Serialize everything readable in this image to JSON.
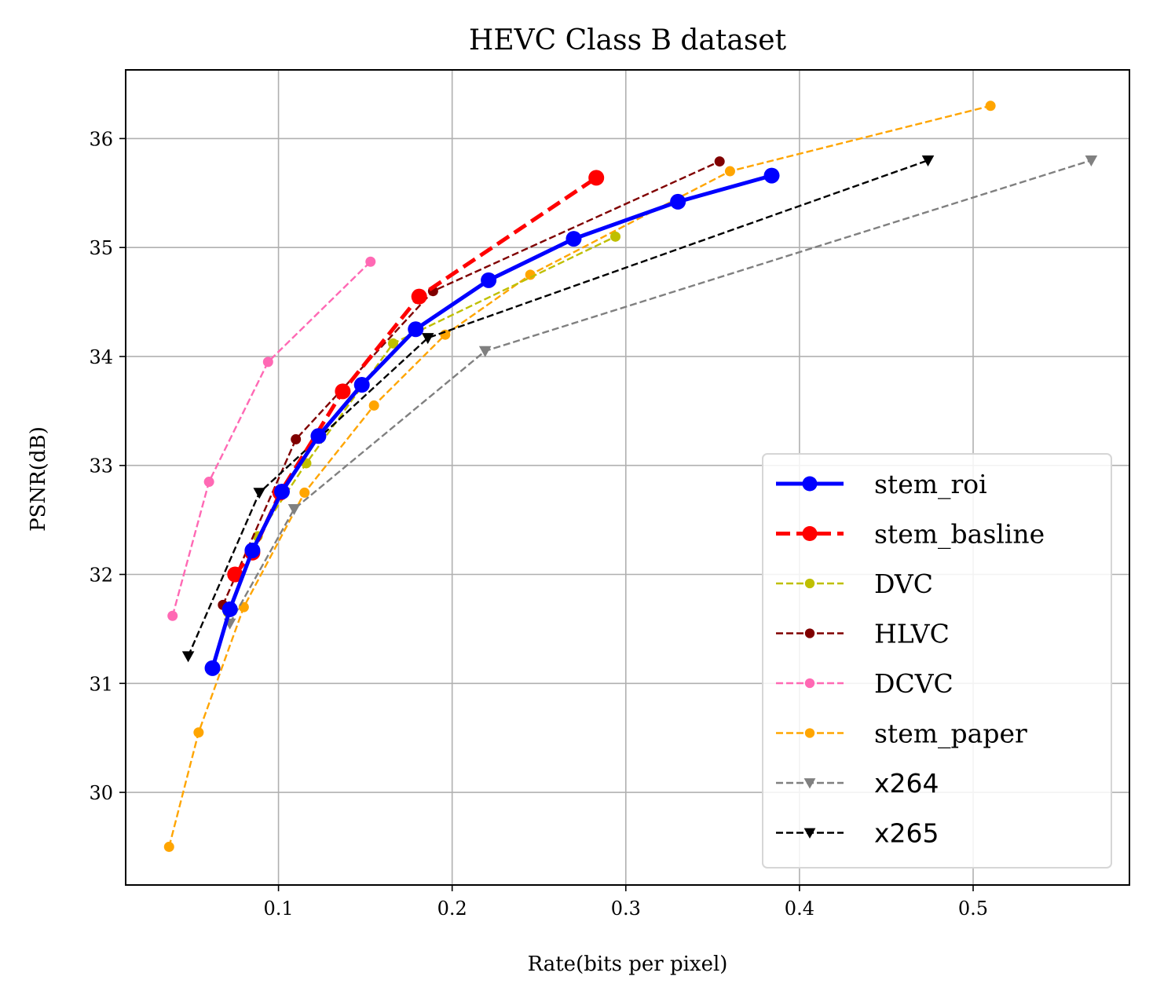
{
  "chart_data": {
    "type": "line",
    "title": "HEVC Class B dataset",
    "xlabel": "Rate(bits per pixel)",
    "ylabel": "PSNR(dB)",
    "xlim": [
      0.012,
      0.59
    ],
    "ylim": [
      29.15,
      36.63
    ],
    "xticks": [
      0.1,
      0.2,
      0.3,
      0.4,
      0.5
    ],
    "xtick_labels": [
      "0.1",
      "0.2",
      "0.3",
      "0.4",
      "0.5"
    ],
    "yticks": [
      30,
      31,
      32,
      33,
      34,
      35,
      36
    ],
    "ytick_labels": [
      "30",
      "31",
      "32",
      "33",
      "34",
      "35",
      "36"
    ],
    "grid": true,
    "legend_position": "lower-right",
    "series": [
      {
        "name": "DCVC",
        "color": "#ff69b4",
        "style": "dashed",
        "marker": "circle",
        "legend_font": "serif",
        "x": [
          0.039,
          0.06,
          0.094,
          0.153
        ],
        "y": [
          31.62,
          32.85,
          33.95,
          34.87
        ]
      },
      {
        "name": "stem_paper",
        "color": "#ffa500",
        "style": "dashed",
        "marker": "circle",
        "legend_font": "serif",
        "x": [
          0.037,
          0.054,
          0.08,
          0.115,
          0.155,
          0.196,
          0.245,
          0.36,
          0.51
        ],
        "y": [
          29.5,
          30.55,
          31.7,
          32.75,
          33.55,
          34.2,
          34.75,
          35.7,
          36.3
        ]
      },
      {
        "name": "DVC",
        "color": "#bfbf00",
        "style": "dashed",
        "marker": "circle",
        "legend_font": "serif",
        "x": [
          0.071,
          0.088,
          0.116,
          0.166,
          0.294
        ],
        "y": [
          31.65,
          32.35,
          33.02,
          34.12,
          35.1
        ]
      },
      {
        "name": "HLVC",
        "color": "#800000",
        "style": "dashed",
        "marker": "circle",
        "legend_font": "serif",
        "x": [
          0.068,
          0.11,
          0.189,
          0.354
        ],
        "y": [
          31.72,
          33.24,
          34.6,
          35.79
        ]
      },
      {
        "name": "x264",
        "color": "#808080",
        "style": "dashed",
        "marker": "triangle-down",
        "legend_font": "sans",
        "x": [
          0.072,
          0.109,
          0.219,
          0.568
        ],
        "y": [
          31.55,
          32.6,
          34.05,
          35.8
        ]
      },
      {
        "name": "x265",
        "color": "#000000",
        "style": "dashed",
        "marker": "triangle-down",
        "legend_font": "sans",
        "x": [
          0.048,
          0.089,
          0.186,
          0.474
        ],
        "y": [
          31.25,
          32.75,
          34.17,
          35.8
        ]
      },
      {
        "name": "stem_basline",
        "color": "#ff0000",
        "style": "thick-dashed",
        "marker": "circle-large",
        "legend_font": "serif",
        "x": [
          0.075,
          0.085,
          0.101,
          0.137,
          0.181,
          0.283
        ],
        "y": [
          32.0,
          32.2,
          32.75,
          33.68,
          34.55,
          35.64
        ]
      },
      {
        "name": "stem_roi",
        "color": "#0000ff",
        "style": "solid-thick",
        "marker": "circle-large",
        "legend_font": "serif",
        "x": [
          0.062,
          0.072,
          0.085,
          0.102,
          0.123,
          0.148,
          0.179,
          0.221,
          0.27,
          0.33,
          0.384
        ],
        "y": [
          31.14,
          31.68,
          32.22,
          32.76,
          33.27,
          33.74,
          34.25,
          34.7,
          35.08,
          35.42,
          35.66
        ]
      }
    ],
    "legend_order": [
      "stem_roi",
      "stem_basline",
      "DVC",
      "HLVC",
      "DCVC",
      "stem_paper",
      "x264",
      "x265"
    ]
  }
}
